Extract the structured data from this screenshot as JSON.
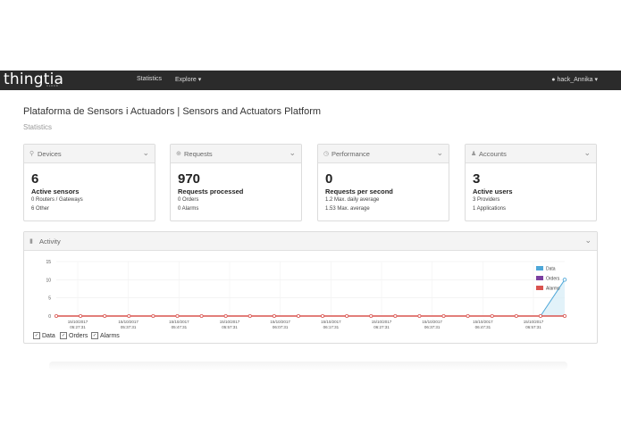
{
  "brand": {
    "name": "thingtia",
    "sub": "CLOUD"
  },
  "nav": {
    "statistics": "Statistics",
    "explore": "Explore",
    "explore_caret": "▾",
    "user": "hack_Annika",
    "user_caret": "▾"
  },
  "header": {
    "title": "Plataforma de Sensors i Actuadors | Sensors and Actuators Platform",
    "subtitle": "Statistics"
  },
  "cards": [
    {
      "title": "Devices",
      "value": "6",
      "label": "Active sensors",
      "line1": "0 Routers / Gateways",
      "line2": "6 Other"
    },
    {
      "title": "Requests",
      "value": "970",
      "label": "Requests processed",
      "line1": "0 Orders",
      "line2": "0 Alarms"
    },
    {
      "title": "Performance",
      "value": "0",
      "label": "Requests per second",
      "line1": "1.2 Max. daily average",
      "line2": "1.53 Max. average"
    },
    {
      "title": "Accounts",
      "value": "3",
      "label": "Active users",
      "line1": "3 Providers",
      "line2": "1 Applications"
    }
  ],
  "activity": {
    "title": "Activity",
    "toggles": [
      "Data",
      "Orders",
      "Alarms"
    ]
  },
  "colors": {
    "data": "#4ea7d8",
    "orders": "#7b3fa0",
    "alarms": "#d9534f",
    "navbar": "#2b2b2b"
  },
  "chart_data": {
    "type": "line",
    "ylim": [
      0,
      15
    ],
    "yticks": [
      "15",
      "10",
      "5",
      "0"
    ],
    "x_tick_labels": [
      [
        "15/10/2017",
        "05:27:31"
      ],
      [
        "15/10/2017",
        "05:37:31"
      ],
      [
        "15/10/2017",
        "05:47:31"
      ],
      [
        "15/10/2017",
        "05:57:31"
      ],
      [
        "15/10/2017",
        "06:07:31"
      ],
      [
        "15/10/2017",
        "06:17:31"
      ],
      [
        "15/10/2017",
        "06:27:31"
      ],
      [
        "15/10/2017",
        "06:37:31"
      ],
      [
        "15/10/2017",
        "06:47:31"
      ],
      [
        "15/10/2017",
        "06:57:31"
      ]
    ],
    "series": [
      {
        "name": "Data",
        "values": [
          0,
          0,
          0,
          0,
          0,
          0,
          0,
          0,
          0,
          0,
          0,
          0,
          0,
          0,
          0,
          0,
          0,
          0,
          0,
          0,
          0,
          10
        ]
      },
      {
        "name": "Orders",
        "values": [
          0,
          0,
          0,
          0,
          0,
          0,
          0,
          0,
          0,
          0,
          0,
          0,
          0,
          0,
          0,
          0,
          0,
          0,
          0,
          0,
          0,
          0
        ]
      },
      {
        "name": "Alarms",
        "values": [
          0,
          0,
          0,
          0,
          0,
          0,
          0,
          0,
          0,
          0,
          0,
          0,
          0,
          0,
          0,
          0,
          0,
          0,
          0,
          0,
          0,
          0
        ]
      }
    ],
    "legend": "top-right",
    "grid": true
  }
}
